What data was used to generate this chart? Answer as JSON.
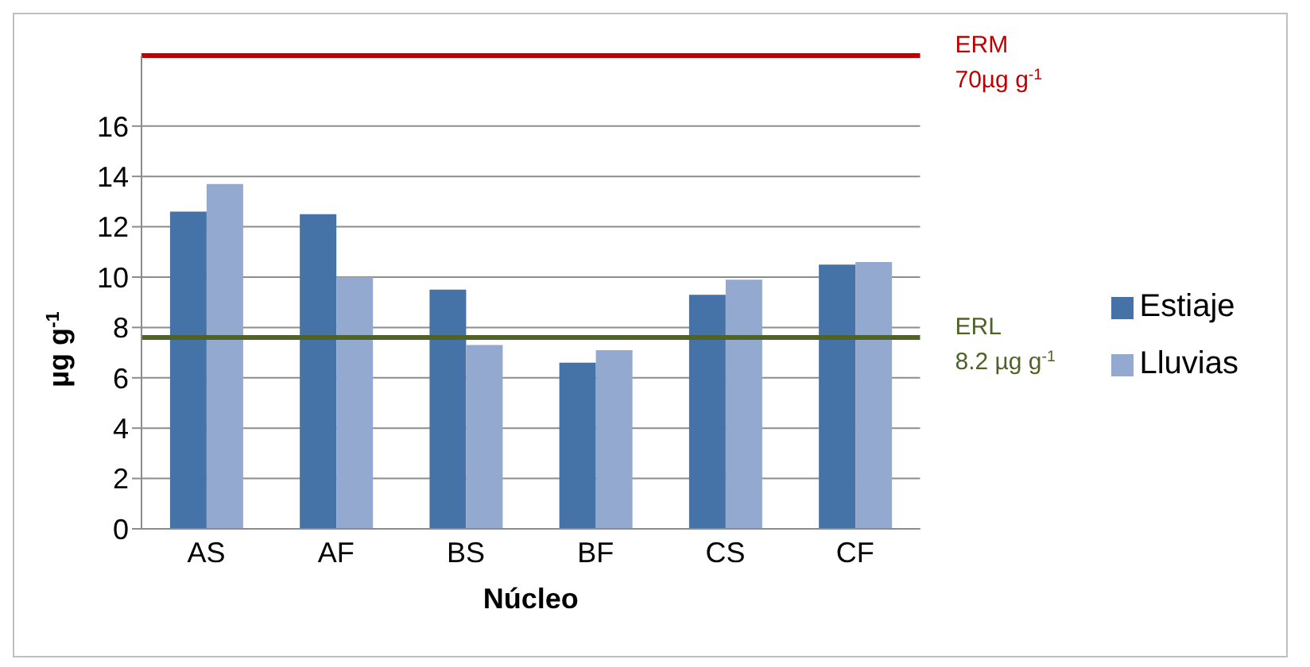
{
  "chart_data": {
    "type": "bar",
    "xlabel": "Núcleo",
    "ylabel": "µg  g$^{-1}$",
    "categories": [
      "AS",
      "AF",
      "BS",
      "BF",
      "CS",
      "CF"
    ],
    "series": [
      {
        "name": "Estiaje",
        "color": "#4572a7",
        "values": [
          12.6,
          12.5,
          9.5,
          6.6,
          9.3,
          10.5
        ]
      },
      {
        "name": "Lluvias",
        "color": "#93a9cf",
        "values": [
          13.7,
          10.0,
          7.3,
          7.1,
          9.9,
          10.6
        ]
      }
    ],
    "ylim": [
      0,
      18.8
    ],
    "yticks": [
      0,
      2,
      4,
      6,
      8,
      10,
      12,
      14,
      16
    ],
    "grid": "y",
    "legend": "right",
    "ref_lines": [
      {
        "axis": "y",
        "value": 18.8,
        "label": "ERM 70µg  g$^{-1}$",
        "color": "#c00000"
      },
      {
        "axis": "y",
        "value": 7.6,
        "label": "ERL 8.2 µg g$^{-1}$",
        "color": "#4f6228"
      }
    ]
  }
}
